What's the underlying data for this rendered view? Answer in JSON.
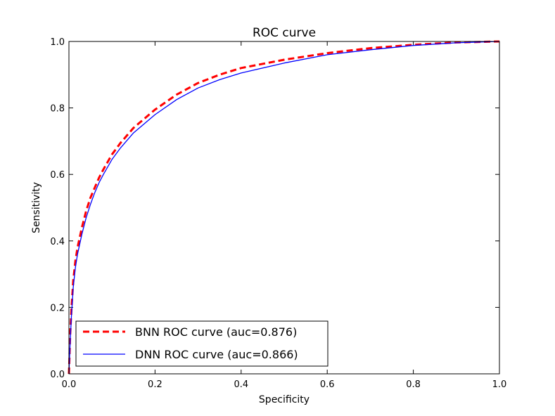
{
  "chart_data": {
    "type": "line",
    "title": "ROC curve",
    "xlabel": "Specificity",
    "ylabel": "Sensitivity",
    "xlim": [
      0.0,
      1.0
    ],
    "ylim": [
      0.0,
      1.0
    ],
    "xticks": [
      "0.0",
      "0.2",
      "0.4",
      "0.6",
      "0.8",
      "1.0"
    ],
    "yticks": [
      "0.0",
      "0.2",
      "0.4",
      "0.6",
      "0.8",
      "1.0"
    ],
    "grid": false,
    "legend_position": "lower-left",
    "series": [
      {
        "name": "BNN ROC curve (auc=0.876)",
        "color": "#ff0000",
        "style": "dashed",
        "x": [
          0.0,
          0.003,
          0.006,
          0.01,
          0.015,
          0.02,
          0.03,
          0.04,
          0.05,
          0.06,
          0.07,
          0.08,
          0.1,
          0.12,
          0.15,
          0.2,
          0.25,
          0.3,
          0.35,
          0.4,
          0.5,
          0.6,
          0.7,
          0.8,
          0.9,
          1.0
        ],
        "y": [
          0.0,
          0.12,
          0.2,
          0.28,
          0.34,
          0.38,
          0.44,
          0.49,
          0.53,
          0.56,
          0.59,
          0.615,
          0.66,
          0.695,
          0.74,
          0.795,
          0.84,
          0.875,
          0.9,
          0.92,
          0.945,
          0.965,
          0.98,
          0.99,
          0.997,
          1.0
        ]
      },
      {
        "name": "DNN ROC curve (auc=0.866)",
        "color": "#0000ff",
        "style": "solid",
        "x": [
          0.0,
          0.003,
          0.006,
          0.01,
          0.015,
          0.02,
          0.03,
          0.04,
          0.05,
          0.06,
          0.07,
          0.08,
          0.1,
          0.12,
          0.15,
          0.2,
          0.25,
          0.3,
          0.35,
          0.4,
          0.5,
          0.6,
          0.7,
          0.8,
          0.9,
          1.0
        ],
        "y": [
          0.0,
          0.1,
          0.18,
          0.26,
          0.32,
          0.36,
          0.42,
          0.47,
          0.51,
          0.545,
          0.575,
          0.6,
          0.645,
          0.68,
          0.725,
          0.78,
          0.825,
          0.86,
          0.885,
          0.905,
          0.935,
          0.96,
          0.975,
          0.988,
          0.996,
          1.0
        ]
      }
    ]
  }
}
